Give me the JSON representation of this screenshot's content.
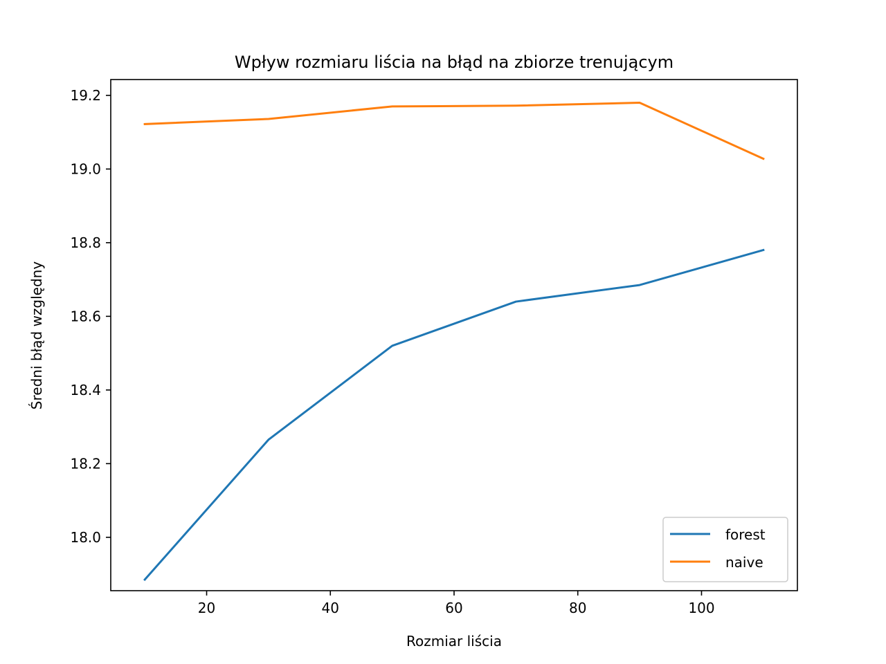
{
  "chart_data": {
    "type": "line",
    "title": "Wpływ rozmiaru liścia na błąd na zbiorze trenującym",
    "xlabel": "Rozmiar liścia",
    "ylabel": "Średni błąd względny",
    "x": [
      10,
      30,
      50,
      70,
      90,
      110
    ],
    "xlim": [
      4.5,
      115.5
    ],
    "ylim": [
      17.855,
      19.243
    ],
    "xticks": [
      20,
      40,
      60,
      80,
      100
    ],
    "yticks": [
      18.0,
      18.2,
      18.4,
      18.6,
      18.8,
      19.0,
      19.2
    ],
    "grid": false,
    "legend_position": "lower-right",
    "series": [
      {
        "name": "forest",
        "color": "#1f77b4",
        "values": [
          17.885,
          18.265,
          18.52,
          18.64,
          18.685,
          18.78
        ]
      },
      {
        "name": "naive",
        "color": "#ff7f0e",
        "values": [
          19.122,
          19.136,
          19.17,
          19.172,
          19.18,
          19.028
        ]
      }
    ]
  }
}
